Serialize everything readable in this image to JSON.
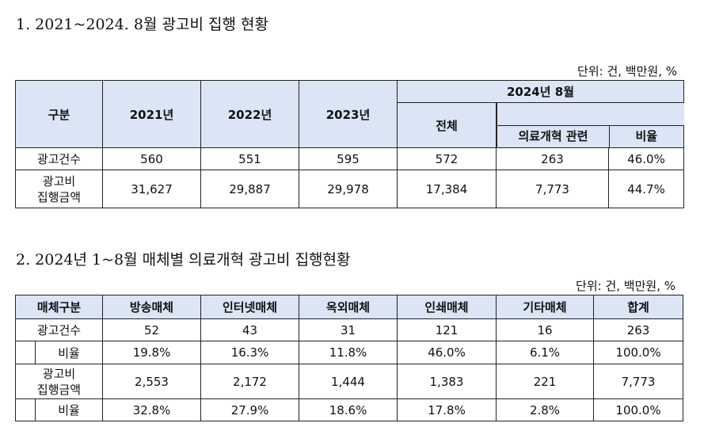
{
  "section1": {
    "title": "1. 2021~2024. 8월 광고비 집행 현황",
    "unit": "단위: 건, 백만원, %",
    "headers": {
      "category": "구분",
      "y2021": "2021년",
      "y2022": "2022년",
      "y2023": "2023년",
      "y2024": "2024년 8월",
      "total": "전체",
      "medical": "의료개혁 관련",
      "ratio": "비율"
    },
    "rows": [
      {
        "label_1": "광고건수",
        "label_2": "",
        "values": [
          "560",
          "551",
          "595",
          "572",
          "263",
          "46.0%"
        ]
      },
      {
        "label_1": "광고비",
        "label_2": "집행금액",
        "values": [
          "31,627",
          "29,887",
          "29,978",
          "17,384",
          "7,773",
          "44.7%"
        ]
      }
    ]
  },
  "section2": {
    "title": "2. 2024년 1~8월 매체별 의료개혁 광고비 집행현황",
    "unit": "단위: 건, 백만원, %",
    "headers": [
      "매체구분",
      "방송매체",
      "인터넷매체",
      "옥외매체",
      "인쇄매체",
      "기타매체",
      "합계"
    ],
    "rows": [
      {
        "label": "광고건수",
        "values": [
          "52",
          "43",
          "31",
          "121",
          "16",
          "263"
        ]
      },
      {
        "label": "비율",
        "values": [
          "19.8%",
          "16.3%",
          "11.8%",
          "46.0%",
          "6.1%",
          "100.0%"
        ]
      },
      {
        "label_1": "광고비",
        "label_2": "집행금액",
        "values": [
          "2,553",
          "2,172",
          "1,444",
          "1,383",
          "221",
          "7,773"
        ]
      },
      {
        "label": "비율",
        "values": [
          "32.8%",
          "27.9%",
          "18.6%",
          "17.8%",
          "2.8%",
          "100.0%"
        ]
      }
    ]
  }
}
